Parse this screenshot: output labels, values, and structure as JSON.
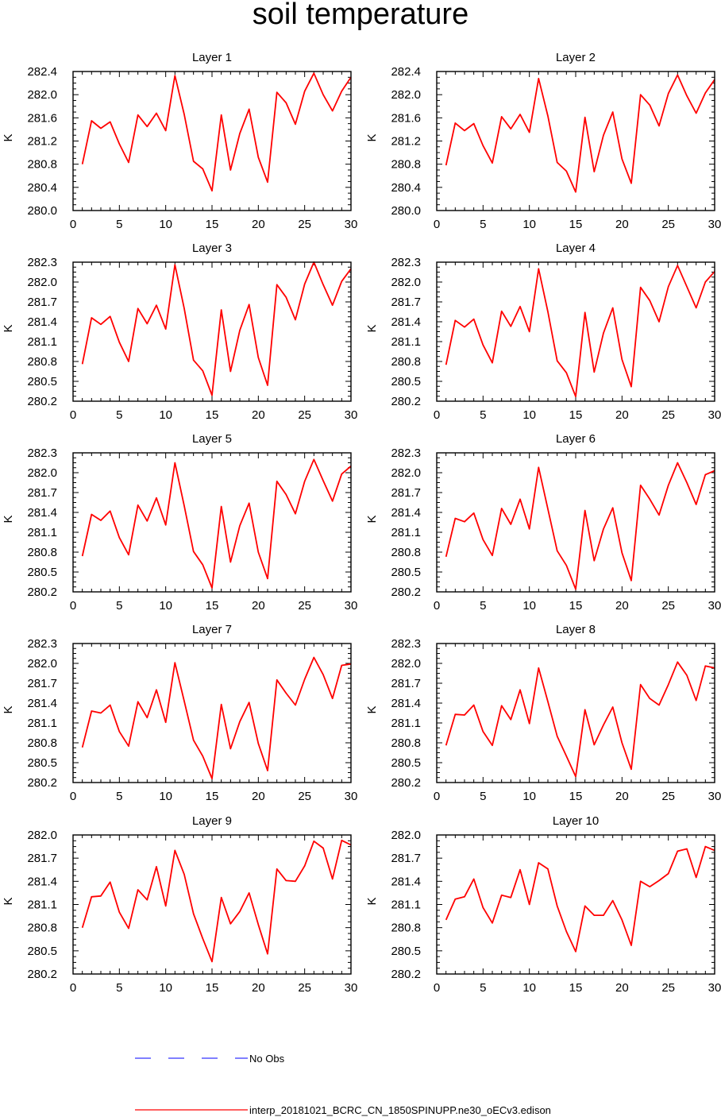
{
  "figure": {
    "title": "soil temperature",
    "colors": {
      "model": "#ff0000",
      "obs": "#0000ff",
      "axis": "#000000"
    }
  },
  "legend": {
    "obs_label": "No Obs",
    "model_label": "interp_20181021_BCRC_CN_1850SPINUPP.ne30_oECv3.edison"
  },
  "chart_data": [
    {
      "type": "line",
      "title": "Layer 1",
      "xlabel": "",
      "ylabel": "K",
      "xlim": [
        0,
        30
      ],
      "xticks": [
        0,
        5,
        10,
        15,
        20,
        25,
        30
      ],
      "ylim": [
        280.0,
        282.4
      ],
      "yticks": [
        280.0,
        280.4,
        280.8,
        281.2,
        281.6,
        282.0,
        282.4
      ],
      "series": [
        {
          "name": "interp_20181021_BCRC_CN_1850SPINUPP.ne30_oECv3.edison",
          "x": [
            1,
            2,
            3,
            4,
            5,
            6,
            7,
            8,
            9,
            10,
            11,
            12,
            13,
            14,
            15,
            16,
            17,
            18,
            19,
            20,
            21,
            22,
            23,
            24,
            25,
            26,
            27,
            28,
            29,
            30
          ],
          "values": [
            280.8,
            281.55,
            281.42,
            281.53,
            281.15,
            280.83,
            281.65,
            281.45,
            281.68,
            281.38,
            282.33,
            281.66,
            280.85,
            280.72,
            280.34,
            281.65,
            280.7,
            281.33,
            281.75,
            280.92,
            280.49,
            282.04,
            281.86,
            281.49,
            282.06,
            282.37,
            282.0,
            281.72,
            282.06,
            282.3
          ]
        }
      ]
    },
    {
      "type": "line",
      "title": "Layer 2",
      "xlabel": "",
      "ylabel": "K",
      "xlim": [
        0,
        30
      ],
      "xticks": [
        0,
        5,
        10,
        15,
        20,
        25,
        30
      ],
      "ylim": [
        280.0,
        282.4
      ],
      "yticks": [
        280.0,
        280.4,
        280.8,
        281.2,
        281.6,
        282.0,
        282.4
      ],
      "series": [
        {
          "name": "interp_20181021_BCRC_CN_1850SPINUPP.ne30_oECv3.edison",
          "x": [
            1,
            2,
            3,
            4,
            5,
            6,
            7,
            8,
            9,
            10,
            11,
            12,
            13,
            14,
            15,
            16,
            17,
            18,
            19,
            20,
            21,
            22,
            23,
            24,
            25,
            26,
            27,
            28,
            29,
            30
          ],
          "values": [
            280.78,
            281.51,
            281.38,
            281.5,
            281.12,
            280.82,
            281.62,
            281.41,
            281.66,
            281.35,
            282.28,
            281.63,
            280.83,
            280.68,
            280.32,
            281.61,
            280.67,
            281.3,
            281.7,
            280.89,
            280.47,
            282.0,
            281.82,
            281.46,
            282.02,
            282.34,
            281.98,
            281.68,
            282.03,
            282.26
          ]
        }
      ]
    },
    {
      "type": "line",
      "title": "Layer 3",
      "xlabel": "",
      "ylabel": "K",
      "xlim": [
        0,
        30
      ],
      "xticks": [
        0,
        5,
        10,
        15,
        20,
        25,
        30
      ],
      "ylim": [
        280.2,
        282.3
      ],
      "yticks": [
        280.2,
        280.5,
        280.8,
        281.1,
        281.4,
        281.7,
        282.0,
        282.3
      ],
      "series": [
        {
          "name": "interp_20181021_BCRC_CN_1850SPINUPP.ne30_oECv3.edison",
          "x": [
            1,
            2,
            3,
            4,
            5,
            6,
            7,
            8,
            9,
            10,
            11,
            12,
            13,
            14,
            15,
            16,
            17,
            18,
            19,
            20,
            21,
            22,
            23,
            24,
            25,
            26,
            27,
            28,
            29,
            30
          ],
          "values": [
            280.76,
            281.46,
            281.36,
            281.48,
            281.09,
            280.8,
            281.6,
            281.37,
            281.65,
            281.29,
            282.26,
            281.6,
            280.82,
            280.66,
            280.29,
            281.58,
            280.65,
            281.27,
            281.66,
            280.86,
            280.44,
            281.96,
            281.77,
            281.43,
            281.97,
            282.3,
            281.96,
            281.65,
            282.01,
            282.2
          ]
        }
      ]
    },
    {
      "type": "line",
      "title": "Layer 4",
      "xlabel": "",
      "ylabel": "K",
      "xlim": [
        0,
        30
      ],
      "xticks": [
        0,
        5,
        10,
        15,
        20,
        25,
        30
      ],
      "ylim": [
        280.2,
        282.3
      ],
      "yticks": [
        280.2,
        280.5,
        280.8,
        281.1,
        281.4,
        281.7,
        282.0,
        282.3
      ],
      "series": [
        {
          "name": "interp_20181021_BCRC_CN_1850SPINUPP.ne30_oECv3.edison",
          "x": [
            1,
            2,
            3,
            4,
            5,
            6,
            7,
            8,
            9,
            10,
            11,
            12,
            13,
            14,
            15,
            16,
            17,
            18,
            19,
            20,
            21,
            22,
            23,
            24,
            25,
            26,
            27,
            28,
            29,
            30
          ],
          "values": [
            280.75,
            281.42,
            281.32,
            281.44,
            281.05,
            280.78,
            281.56,
            281.33,
            281.63,
            281.25,
            282.2,
            281.55,
            280.81,
            280.63,
            280.27,
            281.54,
            280.64,
            281.23,
            281.61,
            280.83,
            280.42,
            281.92,
            281.72,
            281.4,
            281.93,
            282.25,
            281.93,
            281.61,
            282.0,
            282.16
          ]
        }
      ]
    },
    {
      "type": "line",
      "title": "Layer 5",
      "xlabel": "",
      "ylabel": "K",
      "xlim": [
        0,
        30
      ],
      "xticks": [
        0,
        5,
        10,
        15,
        20,
        25,
        30
      ],
      "ylim": [
        280.2,
        282.3
      ],
      "yticks": [
        280.2,
        280.5,
        280.8,
        281.1,
        281.4,
        281.7,
        282.0,
        282.3
      ],
      "series": [
        {
          "name": "interp_20181021_BCRC_CN_1850SPINUPP.ne30_oECv3.edison",
          "x": [
            1,
            2,
            3,
            4,
            5,
            6,
            7,
            8,
            9,
            10,
            11,
            12,
            13,
            14,
            15,
            16,
            17,
            18,
            19,
            20,
            21,
            22,
            23,
            24,
            25,
            26,
            27,
            28,
            29,
            30
          ],
          "values": [
            280.74,
            281.37,
            281.28,
            281.42,
            281.02,
            280.76,
            281.51,
            281.27,
            281.62,
            281.21,
            282.15,
            281.5,
            280.81,
            280.61,
            280.26,
            281.49,
            280.65,
            281.2,
            281.54,
            280.8,
            280.4,
            281.87,
            281.67,
            281.38,
            281.87,
            282.2,
            281.88,
            281.57,
            281.98,
            282.1
          ]
        }
      ]
    },
    {
      "type": "line",
      "title": "Layer 6",
      "xlabel": "",
      "ylabel": "K",
      "xlim": [
        0,
        30
      ],
      "xticks": [
        0,
        5,
        10,
        15,
        20,
        25,
        30
      ],
      "ylim": [
        280.2,
        282.3
      ],
      "yticks": [
        280.2,
        280.5,
        280.8,
        281.1,
        281.4,
        281.7,
        282.0,
        282.3
      ],
      "series": [
        {
          "name": "interp_20181021_BCRC_CN_1850SPINUPP.ne30_oECv3.edison",
          "x": [
            1,
            2,
            3,
            4,
            5,
            6,
            7,
            8,
            9,
            10,
            11,
            12,
            13,
            14,
            15,
            16,
            17,
            18,
            19,
            20,
            21,
            22,
            23,
            24,
            25,
            26,
            27,
            28,
            29,
            30
          ],
          "values": [
            280.73,
            281.31,
            281.26,
            281.39,
            280.99,
            280.75,
            281.46,
            281.22,
            281.6,
            281.15,
            282.08,
            281.45,
            280.82,
            280.6,
            280.24,
            281.43,
            280.67,
            281.15,
            281.47,
            280.79,
            280.37,
            281.81,
            281.6,
            281.36,
            281.81,
            282.15,
            281.85,
            281.52,
            281.97,
            282.03
          ]
        }
      ]
    },
    {
      "type": "line",
      "title": "Layer 7",
      "xlabel": "",
      "ylabel": "K",
      "xlim": [
        0,
        30
      ],
      "xticks": [
        0,
        5,
        10,
        15,
        20,
        25,
        30
      ],
      "ylim": [
        280.2,
        282.3
      ],
      "yticks": [
        280.2,
        280.5,
        280.8,
        281.1,
        281.4,
        281.7,
        282.0,
        282.3
      ],
      "series": [
        {
          "name": "interp_20181021_BCRC_CN_1850SPINUPP.ne30_oECv3.edison",
          "x": [
            1,
            2,
            3,
            4,
            5,
            6,
            7,
            8,
            9,
            10,
            11,
            12,
            13,
            14,
            15,
            16,
            17,
            18,
            19,
            20,
            21,
            22,
            23,
            24,
            25,
            26,
            27,
            28,
            29,
            30
          ],
          "values": [
            280.73,
            281.28,
            281.25,
            281.37,
            280.97,
            280.75,
            281.42,
            281.18,
            281.6,
            281.11,
            282.01,
            281.43,
            280.84,
            280.6,
            280.26,
            281.38,
            280.71,
            281.12,
            281.41,
            280.79,
            280.38,
            281.75,
            281.55,
            281.37,
            281.76,
            282.09,
            281.83,
            281.47,
            281.97,
            281.99
          ]
        }
      ]
    },
    {
      "type": "line",
      "title": "Layer 8",
      "xlabel": "",
      "ylabel": "K",
      "xlim": [
        0,
        30
      ],
      "xticks": [
        0,
        5,
        10,
        15,
        20,
        25,
        30
      ],
      "ylim": [
        280.2,
        282.3
      ],
      "yticks": [
        280.2,
        280.5,
        280.8,
        281.1,
        281.4,
        281.7,
        282.0,
        282.3
      ],
      "series": [
        {
          "name": "interp_20181021_BCRC_CN_1850SPINUPP.ne30_oECv3.edison",
          "x": [
            1,
            2,
            3,
            4,
            5,
            6,
            7,
            8,
            9,
            10,
            11,
            12,
            13,
            14,
            15,
            16,
            17,
            18,
            19,
            20,
            21,
            22,
            23,
            24,
            25,
            26,
            27,
            28,
            29,
            30
          ],
          "values": [
            280.76,
            281.23,
            281.22,
            281.37,
            280.97,
            280.76,
            281.36,
            281.15,
            281.6,
            281.09,
            281.93,
            281.42,
            280.9,
            280.6,
            280.29,
            281.3,
            280.77,
            281.07,
            281.34,
            280.8,
            280.4,
            281.68,
            281.47,
            281.37,
            281.68,
            282.02,
            281.82,
            281.44,
            281.96,
            281.93
          ]
        }
      ]
    },
    {
      "type": "line",
      "title": "Layer 9",
      "xlabel": "",
      "ylabel": "K",
      "xlim": [
        0,
        30
      ],
      "xticks": [
        0,
        5,
        10,
        15,
        20,
        25,
        30
      ],
      "ylim": [
        280.2,
        282.0
      ],
      "yticks": [
        280.2,
        280.5,
        280.8,
        281.1,
        281.4,
        281.7,
        282.0
      ],
      "series": [
        {
          "name": "interp_20181021_BCRC_CN_1850SPINUPP.ne30_oECv3.edison",
          "x": [
            1,
            2,
            3,
            4,
            5,
            6,
            7,
            8,
            9,
            10,
            11,
            12,
            13,
            14,
            15,
            16,
            17,
            18,
            19,
            20,
            21,
            22,
            23,
            24,
            25,
            26,
            27,
            28,
            29,
            30
          ],
          "values": [
            280.8,
            281.2,
            281.21,
            281.39,
            281.0,
            280.79,
            281.29,
            281.16,
            281.59,
            281.08,
            281.8,
            281.49,
            280.98,
            280.66,
            280.36,
            281.19,
            280.85,
            281.01,
            281.25,
            280.84,
            280.46,
            281.56,
            281.41,
            281.4,
            281.6,
            281.92,
            281.83,
            281.43,
            281.93,
            281.87
          ]
        }
      ]
    },
    {
      "type": "line",
      "title": "Layer 10",
      "xlabel": "",
      "ylabel": "K",
      "xlim": [
        0,
        30
      ],
      "xticks": [
        0,
        5,
        10,
        15,
        20,
        25,
        30
      ],
      "ylim": [
        280.2,
        282.0
      ],
      "yticks": [
        280.2,
        280.5,
        280.8,
        281.1,
        281.4,
        281.7,
        282.0
      ],
      "series": [
        {
          "name": "interp_20181021_BCRC_CN_1850SPINUPP.ne30_oECv3.edison",
          "x": [
            1,
            2,
            3,
            4,
            5,
            6,
            7,
            8,
            9,
            10,
            11,
            12,
            13,
            14,
            15,
            16,
            17,
            18,
            19,
            20,
            21,
            22,
            23,
            24,
            25,
            26,
            27,
            28,
            29,
            30
          ],
          "values": [
            280.9,
            281.17,
            281.2,
            281.43,
            281.06,
            280.86,
            281.22,
            281.19,
            281.55,
            281.1,
            281.64,
            281.56,
            281.08,
            280.75,
            280.49,
            281.08,
            280.96,
            280.96,
            281.15,
            280.9,
            280.57,
            281.4,
            281.33,
            281.41,
            281.5,
            281.79,
            281.82,
            281.45,
            281.85,
            281.8
          ]
        }
      ]
    }
  ]
}
